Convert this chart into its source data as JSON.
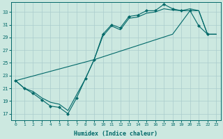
{
  "xlabel": "Humidex (Indice chaleur)",
  "bg_color": "#cce8e0",
  "grid_color": "#aacccc",
  "line_color": "#006868",
  "xlim": [
    -0.5,
    23.5
  ],
  "ylim": [
    16.0,
    34.5
  ],
  "yticks": [
    17,
    19,
    21,
    23,
    25,
    27,
    29,
    31,
    33
  ],
  "xticks": [
    0,
    1,
    2,
    3,
    4,
    5,
    6,
    7,
    8,
    9,
    10,
    11,
    12,
    13,
    14,
    15,
    16,
    17,
    18,
    19,
    20,
    21,
    22,
    23
  ],
  "line1_x": [
    0,
    1,
    2,
    3,
    4,
    5,
    6,
    7,
    8,
    9,
    10,
    11,
    12,
    13,
    14,
    15,
    16,
    17,
    18,
    19,
    20,
    21,
    22
  ],
  "line1_y": [
    22.2,
    21.0,
    20.2,
    19.2,
    18.2,
    18.0,
    17.0,
    19.5,
    22.5,
    25.5,
    29.5,
    31.0,
    30.5,
    32.3,
    32.5,
    33.2,
    33.2,
    34.2,
    33.5,
    33.2,
    33.2,
    30.8,
    29.5
  ],
  "line2_x": [
    0,
    1,
    2,
    3,
    4,
    5,
    6,
    7,
    8,
    9,
    10,
    11,
    12,
    13,
    14,
    15,
    16,
    17,
    18,
    19,
    20,
    21,
    22,
    23
  ],
  "line2_y": [
    22.2,
    21.0,
    20.5,
    19.5,
    18.8,
    18.5,
    17.5,
    20.0,
    22.5,
    25.5,
    29.2,
    30.8,
    30.2,
    32.0,
    32.2,
    32.8,
    33.0,
    33.5,
    33.3,
    33.2,
    33.5,
    33.2,
    29.5,
    29.5
  ],
  "line3_x": [
    0,
    9,
    18,
    20,
    21,
    22,
    23
  ],
  "line3_y": [
    22.2,
    25.5,
    29.5,
    33.2,
    33.2,
    29.5,
    29.5
  ]
}
